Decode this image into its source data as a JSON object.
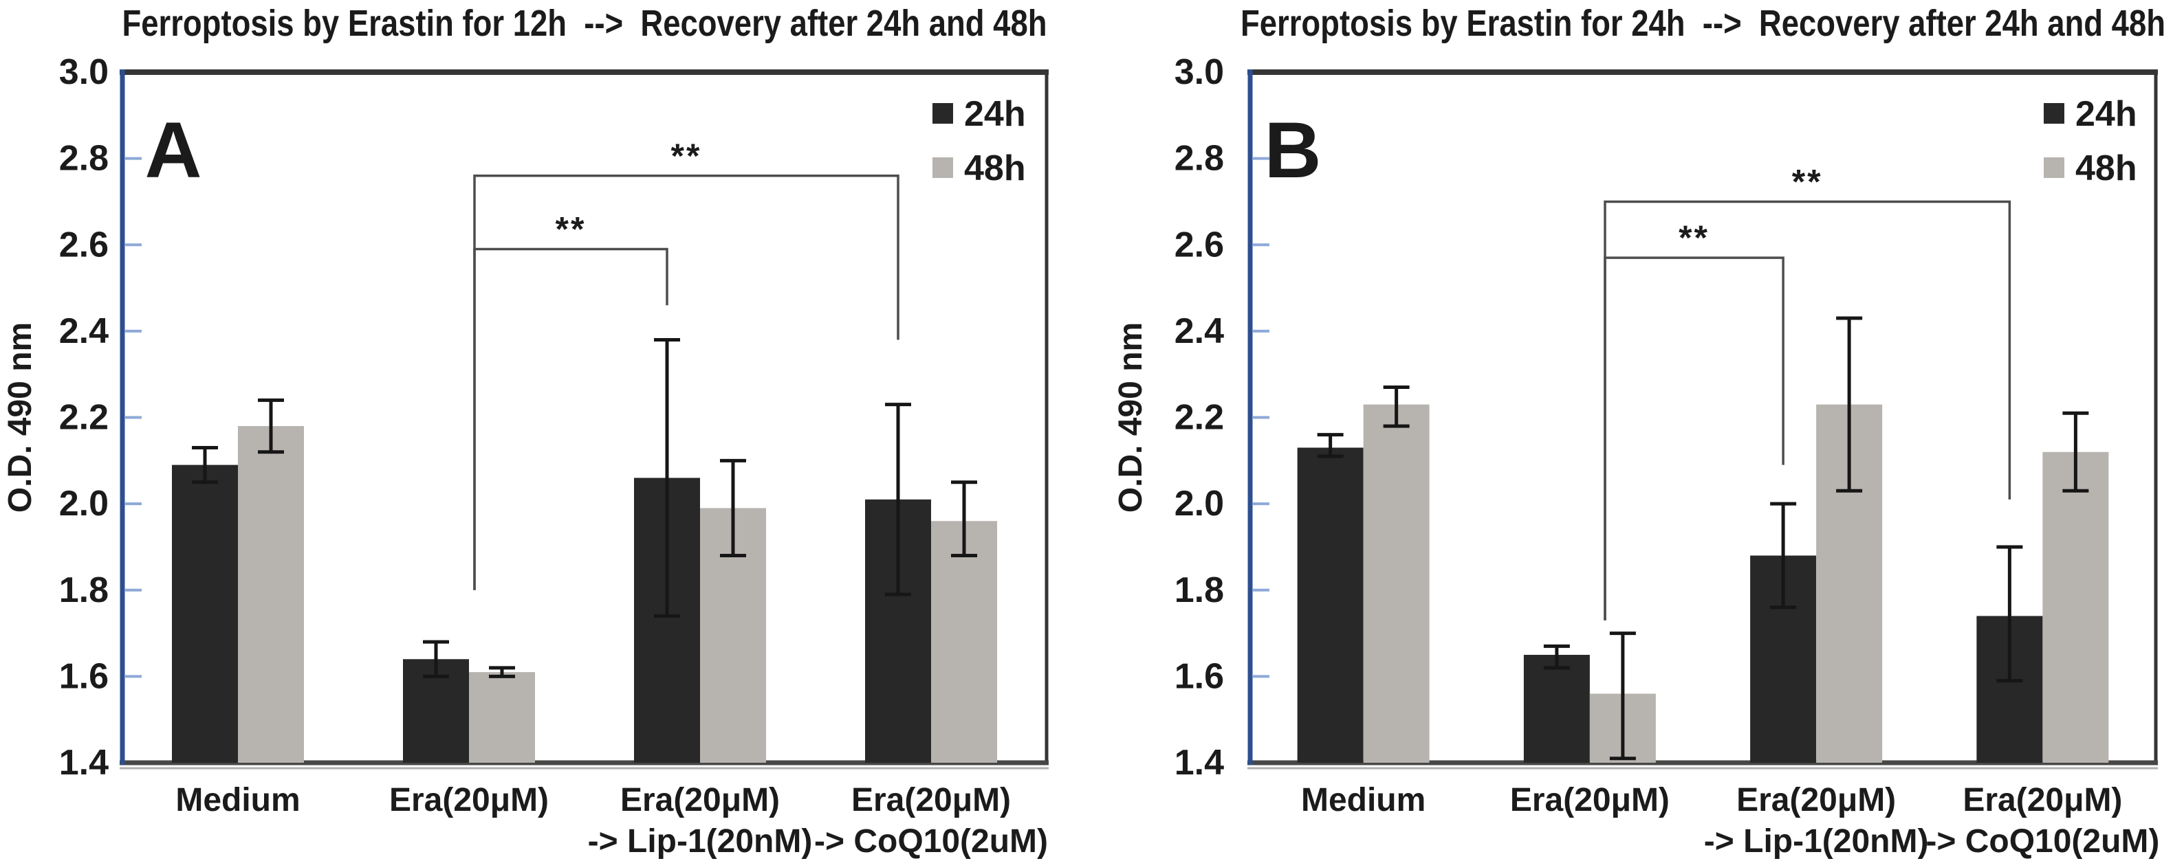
{
  "style": {
    "background": "#ffffff",
    "bar_24h": "#282828",
    "bar_48h": "#b7b4b0",
    "axis_blue": "#2e4f8f",
    "tick_blue": "#8ea9d8",
    "border": "#353535",
    "bottom_axis": "#474747",
    "bottom_axis_shadow": "#b0b0b0",
    "error_bar": "#161616",
    "bracket": "#4d4d4d",
    "text": "#1b1b1b"
  },
  "chart_data": [
    {
      "type": "bar",
      "panel_letter": "A",
      "title": "Ferroptosis by Erastin for 12h  -->  Recovery after 24h and 48h",
      "ylabel": "O.D. 490 nm",
      "ylim": [
        1.4,
        3.0
      ],
      "ytick_step": 0.2,
      "ytick_labels": [
        "3.0",
        "2.8",
        "2.6",
        "2.4",
        "2.2",
        "2.0",
        "1.8",
        "1.6",
        "1.4"
      ],
      "grid": false,
      "legend_position": "top-right",
      "categories": [
        [
          "Medium"
        ],
        [
          "Era(20μM)"
        ],
        [
          "Era(20μM)",
          "-> Lip-1(20nM)"
        ],
        [
          "Era(20μM)",
          "-> CoQ10(2uM)"
        ]
      ],
      "series": [
        {
          "name": "24h",
          "color": "#282828",
          "values": [
            2.09,
            1.64,
            2.06,
            2.01
          ],
          "error_low": [
            2.05,
            1.6,
            1.74,
            1.79
          ],
          "error_high": [
            2.13,
            1.68,
            2.38,
            2.23
          ]
        },
        {
          "name": "48h",
          "color": "#b7b4b0",
          "values": [
            2.18,
            1.61,
            1.99,
            1.96
          ],
          "error_low": [
            2.12,
            1.6,
            1.88,
            1.88
          ],
          "error_high": [
            2.24,
            1.62,
            2.1,
            2.05
          ]
        }
      ],
      "significance": [
        {
          "label": "**",
          "from_category": 1,
          "to_category": 2,
          "level_y": 2.59,
          "left_drop_to": 1.8,
          "right_drop_to": 2.46
        },
        {
          "label": "**",
          "from_category": 1,
          "to_category": 3,
          "level_y": 2.76,
          "left_drop_to": 1.8,
          "right_drop_to": 2.38
        }
      ]
    },
    {
      "type": "bar",
      "panel_letter": "B",
      "title": "Ferroptosis by Erastin for 24h  -->  Recovery after 24h and 48h",
      "ylabel": "O.D. 490 nm",
      "ylim": [
        1.4,
        3.0
      ],
      "ytick_step": 0.2,
      "ytick_labels": [
        "3.0",
        "2.8",
        "2.6",
        "2.4",
        "2.2",
        "2.0",
        "1.8",
        "1.6",
        "1.4"
      ],
      "grid": false,
      "legend_position": "top-right",
      "categories": [
        [
          "Medium"
        ],
        [
          "Era(20μM)"
        ],
        [
          "Era(20μM)",
          "-> Lip-1(20nM)"
        ],
        [
          "Era(20μM)",
          "-> CoQ10(2uM)"
        ]
      ],
      "series": [
        {
          "name": "24h",
          "color": "#282828",
          "values": [
            2.13,
            1.65,
            1.88,
            1.74
          ],
          "error_low": [
            2.11,
            1.62,
            1.76,
            1.59
          ],
          "error_high": [
            2.16,
            1.67,
            2.0,
            1.9
          ]
        },
        {
          "name": "48h",
          "color": "#b7b4b0",
          "values": [
            2.23,
            1.56,
            2.23,
            2.12
          ],
          "error_low": [
            2.18,
            1.41,
            2.03,
            2.03
          ],
          "error_high": [
            2.27,
            1.7,
            2.43,
            2.21
          ]
        }
      ],
      "significance": [
        {
          "label": "**",
          "from_category": 1,
          "to_category": 2,
          "level_y": 2.57,
          "left_drop_to": 1.73,
          "right_drop_to": 2.09
        },
        {
          "label": "**",
          "from_category": 1,
          "to_category": 3,
          "level_y": 2.7,
          "left_drop_to": 1.73,
          "right_drop_to": 2.01
        }
      ]
    }
  ]
}
